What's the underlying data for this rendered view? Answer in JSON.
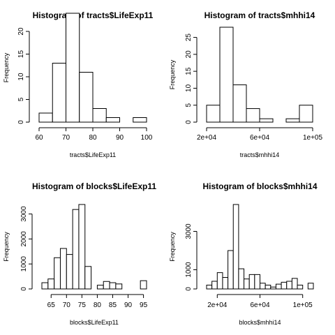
{
  "chart_data": [
    {
      "type": "bar",
      "title": "Histogram of tracts$LifeExp11",
      "xlabel": "tracts$LifeExp11",
      "ylabel": "Frequency",
      "bin_edges": [
        60,
        65,
        70,
        75,
        80,
        85,
        90,
        95,
        100
      ],
      "values": [
        2,
        13,
        24,
        11,
        3,
        1,
        0,
        1
      ],
      "xlim": [
        60,
        100
      ],
      "ylim": [
        0,
        24
      ],
      "xticks": [
        60,
        70,
        80,
        90,
        100
      ],
      "xtick_labels": [
        "60",
        "70",
        "80",
        "90",
        "100"
      ],
      "yticks": [
        0,
        5,
        10,
        15,
        20
      ],
      "ytick_labels": [
        "0",
        "5",
        "10",
        "15",
        "20"
      ]
    },
    {
      "type": "bar",
      "title": "Histogram of tracts$mhhi14",
      "xlabel": "tracts$mhhi14",
      "ylabel": "Frequency",
      "bin_edges": [
        20000,
        30000,
        40000,
        50000,
        60000,
        70000,
        80000,
        90000,
        100000
      ],
      "values": [
        5,
        28,
        11,
        4,
        1,
        0,
        1,
        5
      ],
      "xlim": [
        20000,
        100000
      ],
      "ylim": [
        0,
        28
      ],
      "xticks": [
        20000,
        60000,
        100000
      ],
      "xtick_labels": [
        "2e+04",
        "6e+04",
        "1e+05"
      ],
      "yticks": [
        0,
        5,
        10,
        15,
        20,
        25
      ],
      "ytick_labels": [
        "0",
        "5",
        "10",
        "15",
        "20",
        "25"
      ]
    },
    {
      "type": "bar",
      "title": "Histogram of blocks$LifeExp11",
      "xlabel": "blocks$LifeExp11",
      "ylabel": "Frequency",
      "bin_edges": [
        62,
        64,
        66,
        68,
        70,
        72,
        74,
        76,
        78,
        80,
        82,
        84,
        86,
        88,
        90,
        92,
        94,
        96
      ],
      "values": [
        250,
        400,
        1250,
        1620,
        1380,
        3180,
        3380,
        900,
        0,
        150,
        300,
        250,
        200,
        0,
        0,
        0,
        330
      ],
      "xlim": [
        62,
        96
      ],
      "ylim": [
        0,
        3380
      ],
      "xticks": [
        65,
        70,
        75,
        80,
        85,
        90,
        95
      ],
      "xtick_labels": [
        "65",
        "70",
        "75",
        "80",
        "85",
        "90",
        "95"
      ],
      "yticks": [
        0,
        1000,
        2000,
        3000
      ],
      "ytick_labels": [
        "0",
        "1000",
        "2000",
        "3000"
      ]
    },
    {
      "type": "bar",
      "title": "Histogram of blocks$mhhi14",
      "xlabel": "blocks$mhhi14",
      "ylabel": "Frequency",
      "bin_edges": [
        10000,
        15000,
        20000,
        25000,
        30000,
        35000,
        40000,
        45000,
        50000,
        55000,
        60000,
        65000,
        70000,
        75000,
        80000,
        85000,
        90000,
        95000,
        100000,
        105000,
        110000
      ],
      "values": [
        200,
        400,
        850,
        600,
        2000,
        4400,
        1050,
        520,
        750,
        750,
        300,
        200,
        100,
        250,
        350,
        400,
        550,
        200,
        0,
        300
      ],
      "xlim": [
        10000,
        110000
      ],
      "ylim": [
        0,
        4400
      ],
      "xticks": [
        20000,
        60000,
        100000
      ],
      "xtick_labels": [
        "2e+04",
        "6e+04",
        "1e+05"
      ],
      "yticks": [
        0,
        1000,
        3000
      ],
      "ytick_labels": [
        "0",
        "1000",
        "3000"
      ]
    }
  ]
}
